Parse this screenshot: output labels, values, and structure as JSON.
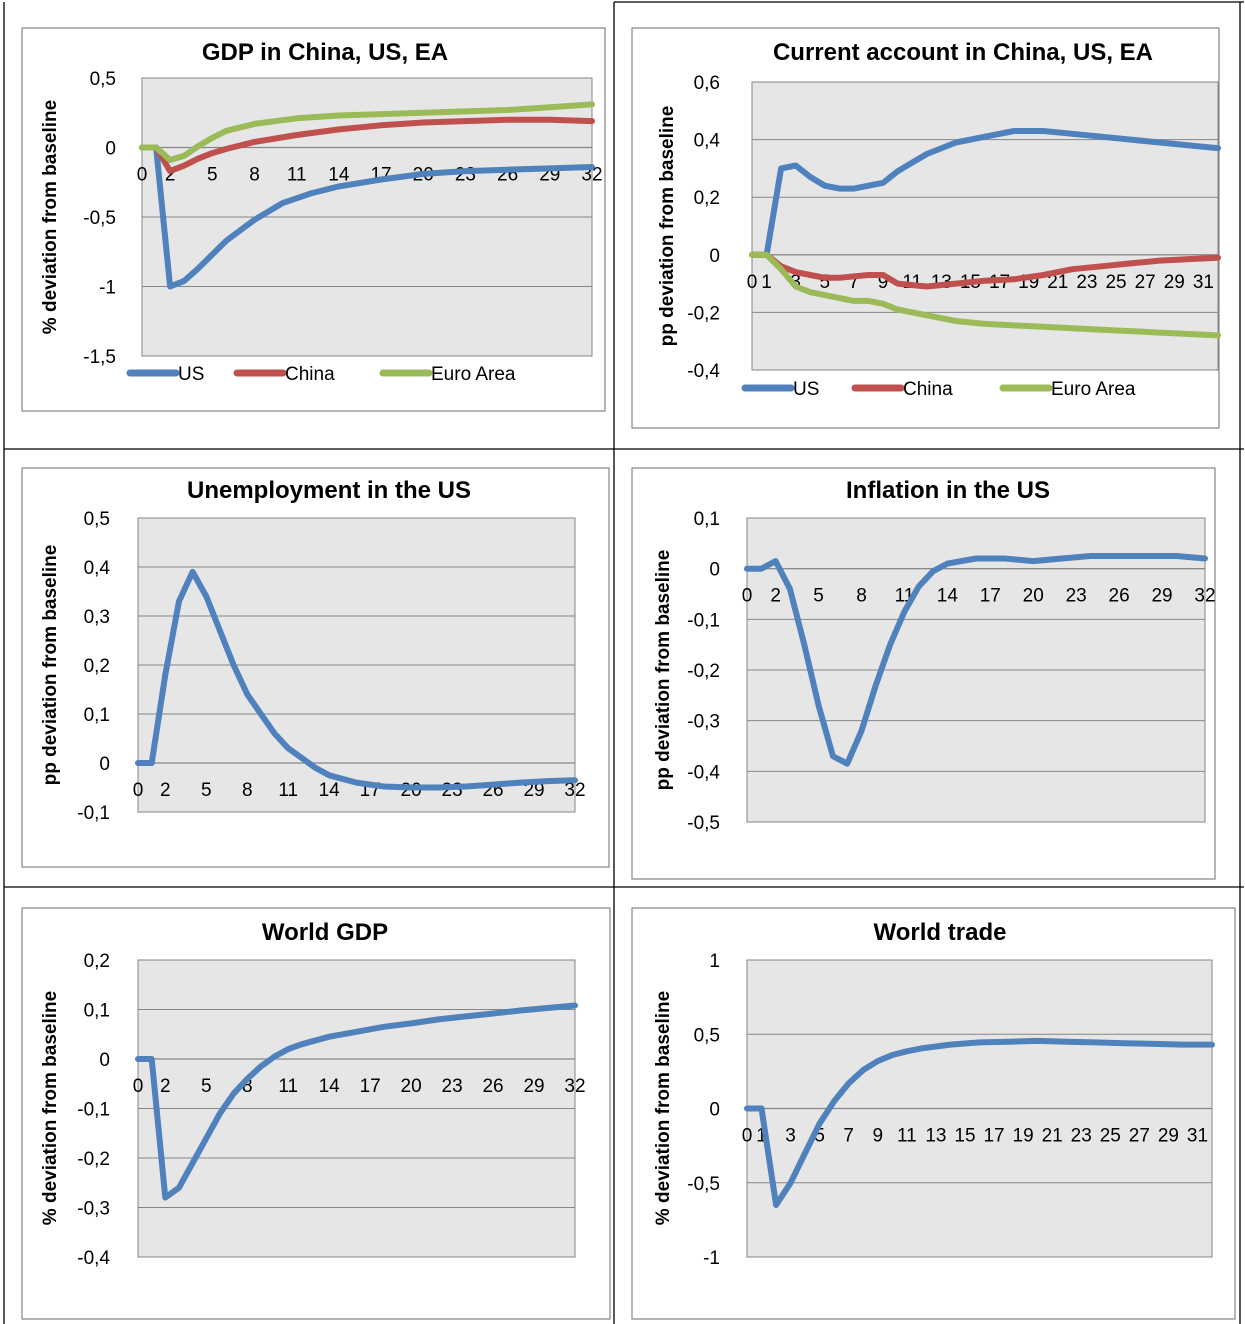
{
  "colors": {
    "US": "#4F81BD",
    "China": "#C0504D",
    "Euro Area": "#9BBB59"
  },
  "chart_data": [
    {
      "type": "line",
      "title": "GDP in China, US, EA",
      "ylabel": "% deviation from baseline",
      "xlabel": "",
      "ylim": [
        -1.5,
        0.5
      ],
      "yticks": [
        0.5,
        0,
        -0.5,
        -1,
        -1.5
      ],
      "ytick_labels": [
        "0,5",
        "0",
        "-0,5",
        "-1",
        "-1,5"
      ],
      "xtick_labels": [
        "0",
        "2",
        "5",
        "8",
        "11",
        "14",
        "17",
        "20",
        "23",
        "26",
        "29",
        "32"
      ],
      "legend_position": "bottom",
      "series": [
        {
          "name": "US",
          "x": [
            0,
            1,
            2,
            3,
            4,
            5,
            6,
            8,
            10,
            12,
            14,
            17,
            20,
            23,
            26,
            29,
            32
          ],
          "y": [
            0,
            0,
            -1.0,
            -0.96,
            -0.87,
            -0.77,
            -0.67,
            -0.52,
            -0.4,
            -0.33,
            -0.28,
            -0.23,
            -0.19,
            -0.17,
            -0.16,
            -0.15,
            -0.14
          ]
        },
        {
          "name": "China",
          "x": [
            0,
            1,
            2,
            3,
            4,
            5,
            6,
            8,
            11,
            14,
            17,
            20,
            23,
            26,
            29,
            32
          ],
          "y": [
            0,
            0,
            -0.17,
            -0.13,
            -0.08,
            -0.04,
            -0.01,
            0.04,
            0.09,
            0.13,
            0.16,
            0.18,
            0.19,
            0.2,
            0.2,
            0.19
          ]
        },
        {
          "name": "Euro Area",
          "x": [
            0,
            1,
            2,
            3,
            4,
            5,
            6,
            8,
            11,
            14,
            17,
            20,
            23,
            26,
            29,
            32
          ],
          "y": [
            0,
            0,
            -0.09,
            -0.06,
            0.01,
            0.07,
            0.12,
            0.17,
            0.21,
            0.23,
            0.24,
            0.25,
            0.26,
            0.27,
            0.29,
            0.31
          ]
        }
      ]
    },
    {
      "type": "line",
      "title": "Current account in China, US, EA",
      "ylabel": "pp deviation from baseline",
      "xlabel": "",
      "ylim": [
        -0.4,
        0.6
      ],
      "yticks": [
        0.6,
        0.4,
        0.2,
        0,
        -0.2,
        -0.4
      ],
      "ytick_labels": [
        "0,6",
        "0,4",
        "0,2",
        "0",
        "-0,2",
        "-0,4"
      ],
      "xtick_labels": [
        "0",
        "1",
        "3",
        "5",
        "7",
        "9",
        "11",
        "13",
        "15",
        "17",
        "19",
        "21",
        "23",
        "25",
        "27",
        "29",
        "31"
      ],
      "legend_position": "bottom",
      "series": [
        {
          "name": "US",
          "x": [
            0,
            1,
            2,
            3,
            4,
            5,
            6,
            7,
            8,
            9,
            10,
            11,
            12,
            14,
            16,
            18,
            20,
            22,
            24,
            26,
            28,
            30,
            32
          ],
          "y": [
            0,
            0,
            0.3,
            0.31,
            0.27,
            0.24,
            0.23,
            0.23,
            0.24,
            0.25,
            0.29,
            0.32,
            0.35,
            0.39,
            0.41,
            0.43,
            0.43,
            0.42,
            0.41,
            0.4,
            0.39,
            0.38,
            0.37
          ]
        },
        {
          "name": "China",
          "x": [
            0,
            1,
            2,
            3,
            4,
            5,
            6,
            7,
            8,
            9,
            10,
            12,
            14,
            16,
            18,
            20,
            22,
            24,
            26,
            28,
            30,
            32
          ],
          "y": [
            0,
            0,
            -0.04,
            -0.06,
            -0.07,
            -0.08,
            -0.08,
            -0.075,
            -0.07,
            -0.07,
            -0.1,
            -0.11,
            -0.1,
            -0.09,
            -0.085,
            -0.07,
            -0.05,
            -0.04,
            -0.03,
            -0.02,
            -0.015,
            -0.01
          ]
        },
        {
          "name": "Euro Area",
          "x": [
            0,
            1,
            2,
            3,
            4,
            5,
            6,
            7,
            8,
            9,
            10,
            12,
            14,
            16,
            18,
            20,
            22,
            24,
            26,
            28,
            30,
            32
          ],
          "y": [
            0,
            0,
            -0.05,
            -0.11,
            -0.13,
            -0.14,
            -0.15,
            -0.16,
            -0.16,
            -0.17,
            -0.19,
            -0.21,
            -0.23,
            -0.24,
            -0.245,
            -0.25,
            -0.255,
            -0.26,
            -0.265,
            -0.27,
            -0.275,
            -0.28
          ]
        }
      ]
    },
    {
      "type": "line",
      "title": "Unemployment in the US",
      "ylabel": "pp deviation from baseline",
      "xlabel": "",
      "ylim": [
        -0.1,
        0.5
      ],
      "yticks": [
        0.5,
        0.4,
        0.3,
        0.2,
        0.1,
        0,
        -0.1
      ],
      "ytick_labels": [
        "0,5",
        "0,4",
        "0,3",
        "0,2",
        "0,1",
        "0",
        "-0,1"
      ],
      "xtick_labels": [
        "0",
        "2",
        "5",
        "8",
        "11",
        "14",
        "17",
        "20",
        "23",
        "26",
        "29",
        "32"
      ],
      "legend_position": "none",
      "series": [
        {
          "name": "",
          "x": [
            0,
            1,
            2,
            3,
            4,
            5,
            6,
            7,
            8,
            9,
            10,
            11,
            12,
            13,
            14,
            16,
            18,
            20,
            22,
            24,
            26,
            28,
            30,
            32
          ],
          "y": [
            0,
            0,
            0.18,
            0.33,
            0.39,
            0.34,
            0.27,
            0.2,
            0.14,
            0.1,
            0.06,
            0.03,
            0.01,
            -0.01,
            -0.025,
            -0.04,
            -0.048,
            -0.05,
            -0.05,
            -0.048,
            -0.044,
            -0.04,
            -0.037,
            -0.035
          ]
        }
      ]
    },
    {
      "type": "line",
      "title": "Inflation in the US",
      "ylabel": "pp deviation from baseline",
      "xlabel": "",
      "ylim": [
        -0.5,
        0.1
      ],
      "yticks": [
        0.1,
        0,
        -0.1,
        -0.2,
        -0.3,
        -0.4,
        -0.5
      ],
      "ytick_labels": [
        "0,1",
        "0",
        "-0,1",
        "-0,2",
        "-0,3",
        "-0,4",
        "-0,5"
      ],
      "xtick_labels": [
        "0",
        "2",
        "5",
        "8",
        "11",
        "14",
        "17",
        "20",
        "23",
        "26",
        "29",
        "32"
      ],
      "legend_position": "none",
      "series": [
        {
          "name": "",
          "x": [
            0,
            1,
            2,
            3,
            4,
            5,
            6,
            7,
            8,
            9,
            10,
            11,
            12,
            13,
            14,
            16,
            18,
            20,
            22,
            24,
            26,
            28,
            30,
            32
          ],
          "y": [
            0,
            0,
            0.015,
            -0.04,
            -0.15,
            -0.27,
            -0.37,
            -0.385,
            -0.32,
            -0.23,
            -0.15,
            -0.085,
            -0.035,
            -0.005,
            0.01,
            0.02,
            0.02,
            0.015,
            0.02,
            0.025,
            0.025,
            0.025,
            0.025,
            0.02
          ]
        }
      ]
    },
    {
      "type": "line",
      "title": "World GDP",
      "ylabel": "% deviation from baseline",
      "xlabel": "",
      "ylim": [
        -0.4,
        0.2
      ],
      "yticks": [
        0.2,
        0.1,
        0,
        -0.1,
        -0.2,
        -0.3,
        -0.4
      ],
      "ytick_labels": [
        "0,2",
        "0,1",
        "0",
        "-0,1",
        "-0,2",
        "-0,3",
        "-0,4"
      ],
      "xtick_labels": [
        "0",
        "2",
        "5",
        "8",
        "11",
        "14",
        "17",
        "20",
        "23",
        "26",
        "29",
        "32"
      ],
      "legend_position": "none",
      "series": [
        {
          "name": "",
          "x": [
            0,
            1,
            2,
            3,
            4,
            5,
            6,
            7,
            8,
            9,
            10,
            11,
            12,
            14,
            16,
            18,
            20,
            22,
            24,
            26,
            28,
            30,
            32
          ],
          "y": [
            0,
            0,
            -0.28,
            -0.26,
            -0.21,
            -0.16,
            -0.11,
            -0.07,
            -0.04,
            -0.015,
            0.005,
            0.02,
            0.03,
            0.045,
            0.055,
            0.065,
            0.072,
            0.08,
            0.086,
            0.092,
            0.098,
            0.103,
            0.108
          ]
        }
      ]
    },
    {
      "type": "line",
      "title": "World trade",
      "ylabel": "% deviation from baseline",
      "xlabel": "",
      "ylim": [
        -1,
        1
      ],
      "yticks": [
        1,
        0.5,
        0,
        -0.5,
        -1
      ],
      "ytick_labels": [
        "1",
        "0,5",
        "0",
        "-0,5",
        "-1"
      ],
      "xtick_labels": [
        "0",
        "1",
        "3",
        "5",
        "7",
        "9",
        "11",
        "13",
        "15",
        "17",
        "19",
        "21",
        "23",
        "25",
        "27",
        "29",
        "31"
      ],
      "legend_position": "none",
      "series": [
        {
          "name": "",
          "x": [
            0,
            1,
            2,
            3,
            4,
            5,
            6,
            7,
            8,
            9,
            10,
            11,
            12,
            14,
            16,
            18,
            20,
            22,
            24,
            26,
            28,
            30,
            32
          ],
          "y": [
            0,
            0,
            -0.65,
            -0.5,
            -0.3,
            -0.1,
            0.05,
            0.17,
            0.26,
            0.32,
            0.36,
            0.385,
            0.405,
            0.43,
            0.445,
            0.45,
            0.455,
            0.45,
            0.445,
            0.44,
            0.435,
            0.43,
            0.43
          ]
        }
      ]
    }
  ]
}
